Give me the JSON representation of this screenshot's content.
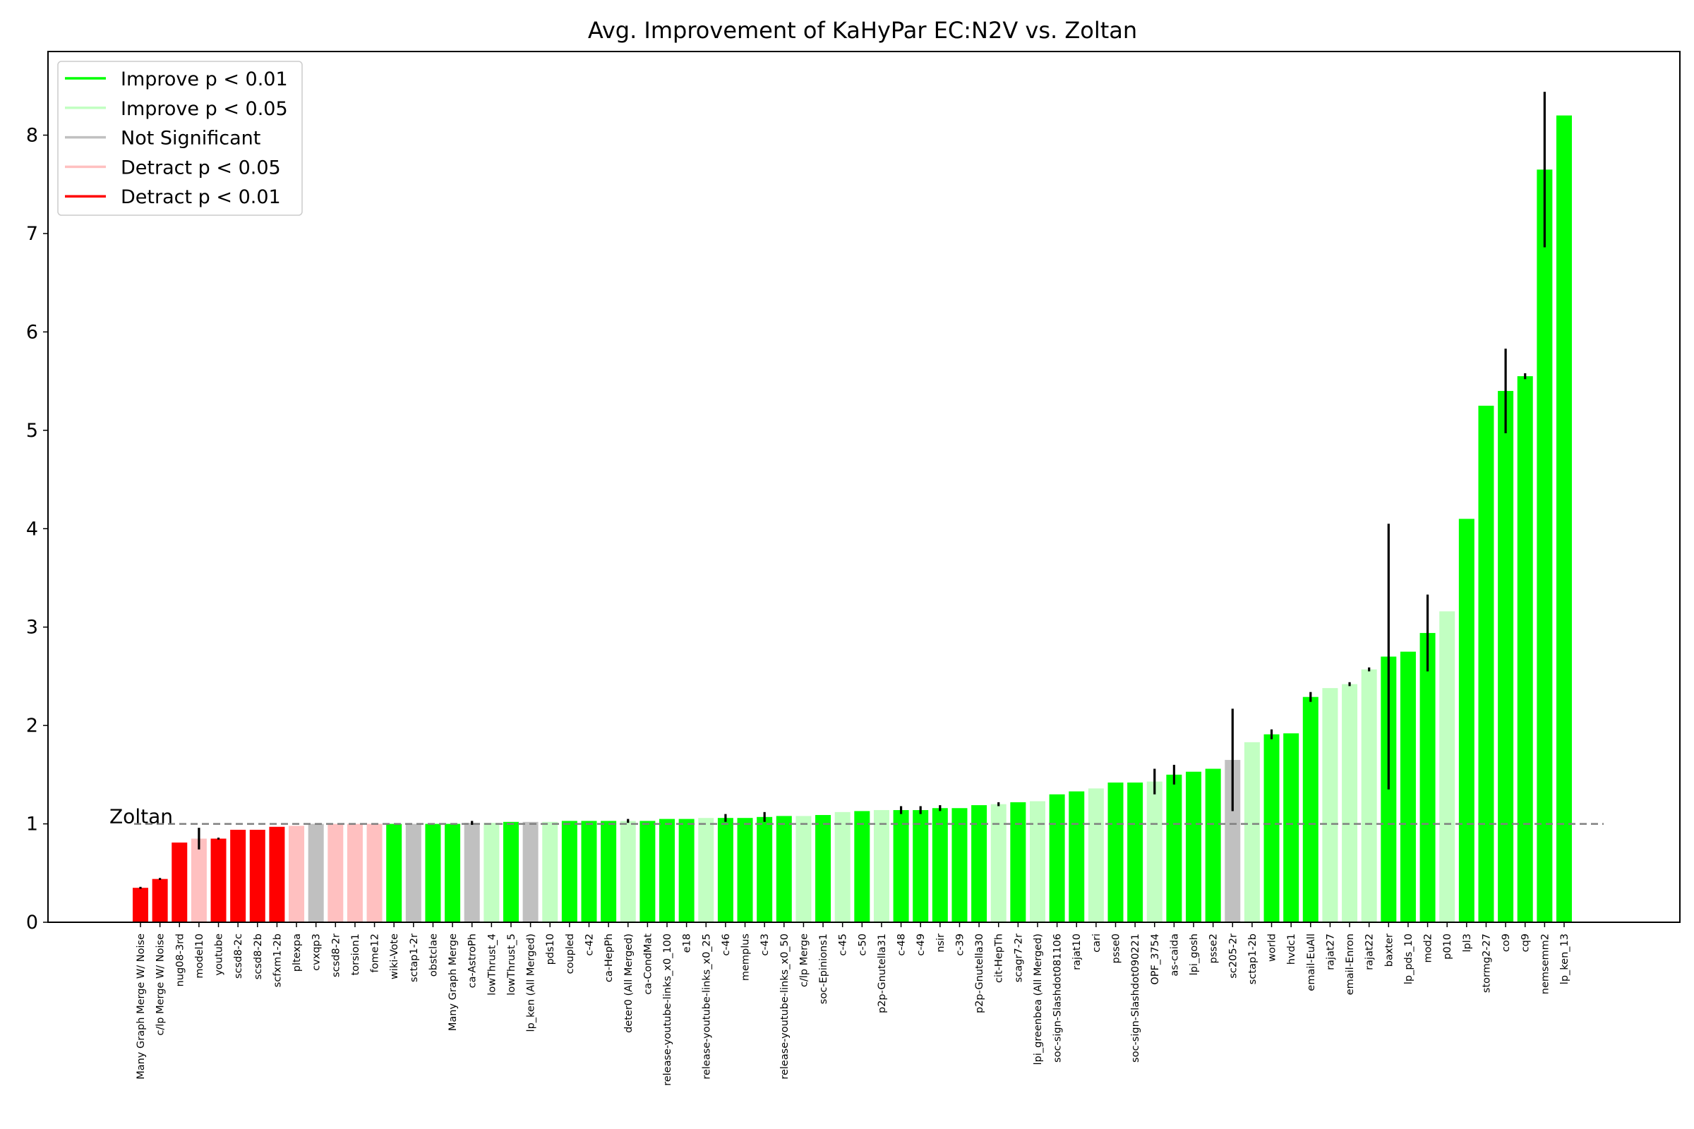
{
  "chart_data": {
    "type": "bar",
    "title": "Avg. Improvement of KaHyPar EC:N2V vs. Zoltan",
    "xlabel": "",
    "ylabel": "",
    "ylim": [
      0,
      8.85
    ],
    "yticks": [
      0,
      1,
      2,
      3,
      4,
      5,
      6,
      7,
      8
    ],
    "grid": false,
    "legend_position": "top-left",
    "reference_line": {
      "value": 1,
      "label": "Zoltan",
      "color": "#808080",
      "style": "dashed"
    },
    "colors": {
      "improve_01": "#00ff00",
      "improve_05": "#c2ffc2",
      "not_significant": "#c0c0c0",
      "detract_05": "#ffc0c0",
      "detract_01": "#ff0000"
    },
    "legend": [
      {
        "key": "improve_01",
        "label": "Improve p < 0.01"
      },
      {
        "key": "improve_05",
        "label": "Improve p < 0.05"
      },
      {
        "key": "not_significant",
        "label": "Not Significant"
      },
      {
        "key": "detract_05",
        "label": "Detract p < 0.05"
      },
      {
        "key": "detract_01",
        "label": "Detract p < 0.01"
      }
    ],
    "bars": [
      {
        "label": "Many Graph Merge W/ Noise",
        "value": 0.35,
        "err": 0.01,
        "cat": "detract_01"
      },
      {
        "label": "c/lp Merge W/ Noise",
        "value": 0.44,
        "err": 0.01,
        "cat": "detract_01"
      },
      {
        "label": "nug08-3rd",
        "value": 0.81,
        "err": 0.0,
        "cat": "detract_01"
      },
      {
        "label": "model10",
        "value": 0.85,
        "err": 0.11,
        "cat": "detract_05"
      },
      {
        "label": "youtube",
        "value": 0.85,
        "err": 0.01,
        "cat": "detract_01"
      },
      {
        "label": "scsd8-2c",
        "value": 0.94,
        "err": 0.0,
        "cat": "detract_01"
      },
      {
        "label": "scsd8-2b",
        "value": 0.94,
        "err": 0.0,
        "cat": "detract_01"
      },
      {
        "label": "scfxm1-2b",
        "value": 0.97,
        "err": 0.0,
        "cat": "detract_01"
      },
      {
        "label": "pltexpa",
        "value": 0.98,
        "err": 0.0,
        "cat": "detract_05"
      },
      {
        "label": "cvxqp3",
        "value": 1.0,
        "err": 0.0,
        "cat": "not_significant"
      },
      {
        "label": "scsd8-2r",
        "value": 1.0,
        "err": 0.0,
        "cat": "detract_05"
      },
      {
        "label": "torsion1",
        "value": 1.0,
        "err": 0.0,
        "cat": "detract_05"
      },
      {
        "label": "fome12",
        "value": 1.0,
        "err": 0.0,
        "cat": "detract_05"
      },
      {
        "label": "wiki-Vote",
        "value": 1.0,
        "err": 0.0,
        "cat": "improve_01"
      },
      {
        "label": "sctap1-2r",
        "value": 1.0,
        "err": 0.0,
        "cat": "not_significant"
      },
      {
        "label": "obstclae",
        "value": 1.0,
        "err": 0.0,
        "cat": "improve_01"
      },
      {
        "label": "Many Graph Merge",
        "value": 1.0,
        "err": 0.0,
        "cat": "improve_01"
      },
      {
        "label": "ca-AstroPh",
        "value": 1.01,
        "err": 0.02,
        "cat": "not_significant"
      },
      {
        "label": "lowThrust_4",
        "value": 1.01,
        "err": 0.0,
        "cat": "improve_05"
      },
      {
        "label": "lowThrust_5",
        "value": 1.02,
        "err": 0.0,
        "cat": "improve_01"
      },
      {
        "label": "lp_ken (All Merged)",
        "value": 1.02,
        "err": 0.0,
        "cat": "not_significant"
      },
      {
        "label": "pds10",
        "value": 1.02,
        "err": 0.0,
        "cat": "improve_05"
      },
      {
        "label": "coupled",
        "value": 1.03,
        "err": 0.0,
        "cat": "improve_01"
      },
      {
        "label": "c-42",
        "value": 1.03,
        "err": 0.0,
        "cat": "improve_01"
      },
      {
        "label": "ca-HepPh",
        "value": 1.03,
        "err": 0.0,
        "cat": "improve_01"
      },
      {
        "label": "deter0 (All Merged)",
        "value": 1.03,
        "err": 0.02,
        "cat": "improve_05"
      },
      {
        "label": "ca-CondMat",
        "value": 1.03,
        "err": 0.0,
        "cat": "improve_01"
      },
      {
        "label": "release-youtube-links_x0_100",
        "value": 1.05,
        "err": 0.0,
        "cat": "improve_01"
      },
      {
        "label": "e18",
        "value": 1.05,
        "err": 0.0,
        "cat": "improve_01"
      },
      {
        "label": "release-youtube-links_x0_25",
        "value": 1.06,
        "err": 0.0,
        "cat": "improve_05"
      },
      {
        "label": "c-46",
        "value": 1.06,
        "err": 0.04,
        "cat": "improve_01"
      },
      {
        "label": "memplus",
        "value": 1.06,
        "err": 0.0,
        "cat": "improve_01"
      },
      {
        "label": "c-43",
        "value": 1.07,
        "err": 0.05,
        "cat": "improve_01"
      },
      {
        "label": "release-youtube-links_x0_50",
        "value": 1.08,
        "err": 0.0,
        "cat": "improve_01"
      },
      {
        "label": "c/lp Merge",
        "value": 1.08,
        "err": 0.0,
        "cat": "improve_05"
      },
      {
        "label": "soc-Epinions1",
        "value": 1.09,
        "err": 0.0,
        "cat": "improve_01"
      },
      {
        "label": "c-45",
        "value": 1.12,
        "err": 0.0,
        "cat": "improve_05"
      },
      {
        "label": "c-50",
        "value": 1.13,
        "err": 0.0,
        "cat": "improve_01"
      },
      {
        "label": "p2p-Gnutella31",
        "value": 1.14,
        "err": 0.0,
        "cat": "improve_05"
      },
      {
        "label": "c-48",
        "value": 1.14,
        "err": 0.04,
        "cat": "improve_01"
      },
      {
        "label": "c-49",
        "value": 1.14,
        "err": 0.04,
        "cat": "improve_01"
      },
      {
        "label": "nsir",
        "value": 1.16,
        "err": 0.03,
        "cat": "improve_01"
      },
      {
        "label": "c-39",
        "value": 1.16,
        "err": 0.0,
        "cat": "improve_01"
      },
      {
        "label": "p2p-Gnutella30",
        "value": 1.19,
        "err": 0.0,
        "cat": "improve_01"
      },
      {
        "label": "cit-HepTh",
        "value": 1.2,
        "err": 0.02,
        "cat": "improve_05"
      },
      {
        "label": "scagr7-2r",
        "value": 1.22,
        "err": 0.0,
        "cat": "improve_01"
      },
      {
        "label": "lpi_greenbea (All Merged)",
        "value": 1.23,
        "err": 0.0,
        "cat": "improve_05"
      },
      {
        "label": "soc-sign-Slashdot081106",
        "value": 1.3,
        "err": 0.0,
        "cat": "improve_01"
      },
      {
        "label": "rajat10",
        "value": 1.33,
        "err": 0.0,
        "cat": "improve_01"
      },
      {
        "label": "cari",
        "value": 1.36,
        "err": 0.0,
        "cat": "improve_05"
      },
      {
        "label": "psse0",
        "value": 1.42,
        "err": 0.0,
        "cat": "improve_01"
      },
      {
        "label": "soc-sign-Slashdot090221",
        "value": 1.42,
        "err": 0.0,
        "cat": "improve_01"
      },
      {
        "label": "OPF_3754",
        "value": 1.43,
        "err": 0.13,
        "cat": "improve_05"
      },
      {
        "label": "as-caida",
        "value": 1.5,
        "err": 0.1,
        "cat": "improve_01"
      },
      {
        "label": "lpi_gosh",
        "value": 1.53,
        "err": 0.0,
        "cat": "improve_01"
      },
      {
        "label": "psse2",
        "value": 1.56,
        "err": 0.0,
        "cat": "improve_01"
      },
      {
        "label": "sc205-2r",
        "value": 1.65,
        "err": 0.52,
        "cat": "not_significant"
      },
      {
        "label": "sctap1-2b",
        "value": 1.83,
        "err": 0.0,
        "cat": "improve_05"
      },
      {
        "label": "world",
        "value": 1.91,
        "err": 0.05,
        "cat": "improve_01"
      },
      {
        "label": "hvdc1",
        "value": 1.92,
        "err": 0.0,
        "cat": "improve_01"
      },
      {
        "label": "email-EuAll",
        "value": 2.29,
        "err": 0.05,
        "cat": "improve_01"
      },
      {
        "label": "rajat27",
        "value": 2.38,
        "err": 0.0,
        "cat": "improve_05"
      },
      {
        "label": "email-Enron",
        "value": 2.42,
        "err": 0.02,
        "cat": "improve_05"
      },
      {
        "label": "rajat22",
        "value": 2.57,
        "err": 0.02,
        "cat": "improve_05"
      },
      {
        "label": "baxter",
        "value": 2.7,
        "err": 1.35,
        "cat": "improve_01"
      },
      {
        "label": "lp_pds_10",
        "value": 2.75,
        "err": 0.0,
        "cat": "improve_01"
      },
      {
        "label": "mod2",
        "value": 2.94,
        "err": 0.39,
        "cat": "improve_01"
      },
      {
        "label": "p010",
        "value": 3.16,
        "err": 0.0,
        "cat": "improve_05"
      },
      {
        "label": "lpl3",
        "value": 4.1,
        "err": 0.0,
        "cat": "improve_01"
      },
      {
        "label": "stormg2-27",
        "value": 5.25,
        "err": 0.0,
        "cat": "improve_01"
      },
      {
        "label": "co9",
        "value": 5.4,
        "err": 0.43,
        "cat": "improve_01"
      },
      {
        "label": "cq9",
        "value": 5.55,
        "err": 0.03,
        "cat": "improve_01"
      },
      {
        "label": "nemsemm2",
        "value": 7.65,
        "err": 0.79,
        "cat": "improve_01"
      },
      {
        "label": "lp_ken_13",
        "value": 8.2,
        "err": 0.0,
        "cat": "improve_01"
      }
    ]
  }
}
